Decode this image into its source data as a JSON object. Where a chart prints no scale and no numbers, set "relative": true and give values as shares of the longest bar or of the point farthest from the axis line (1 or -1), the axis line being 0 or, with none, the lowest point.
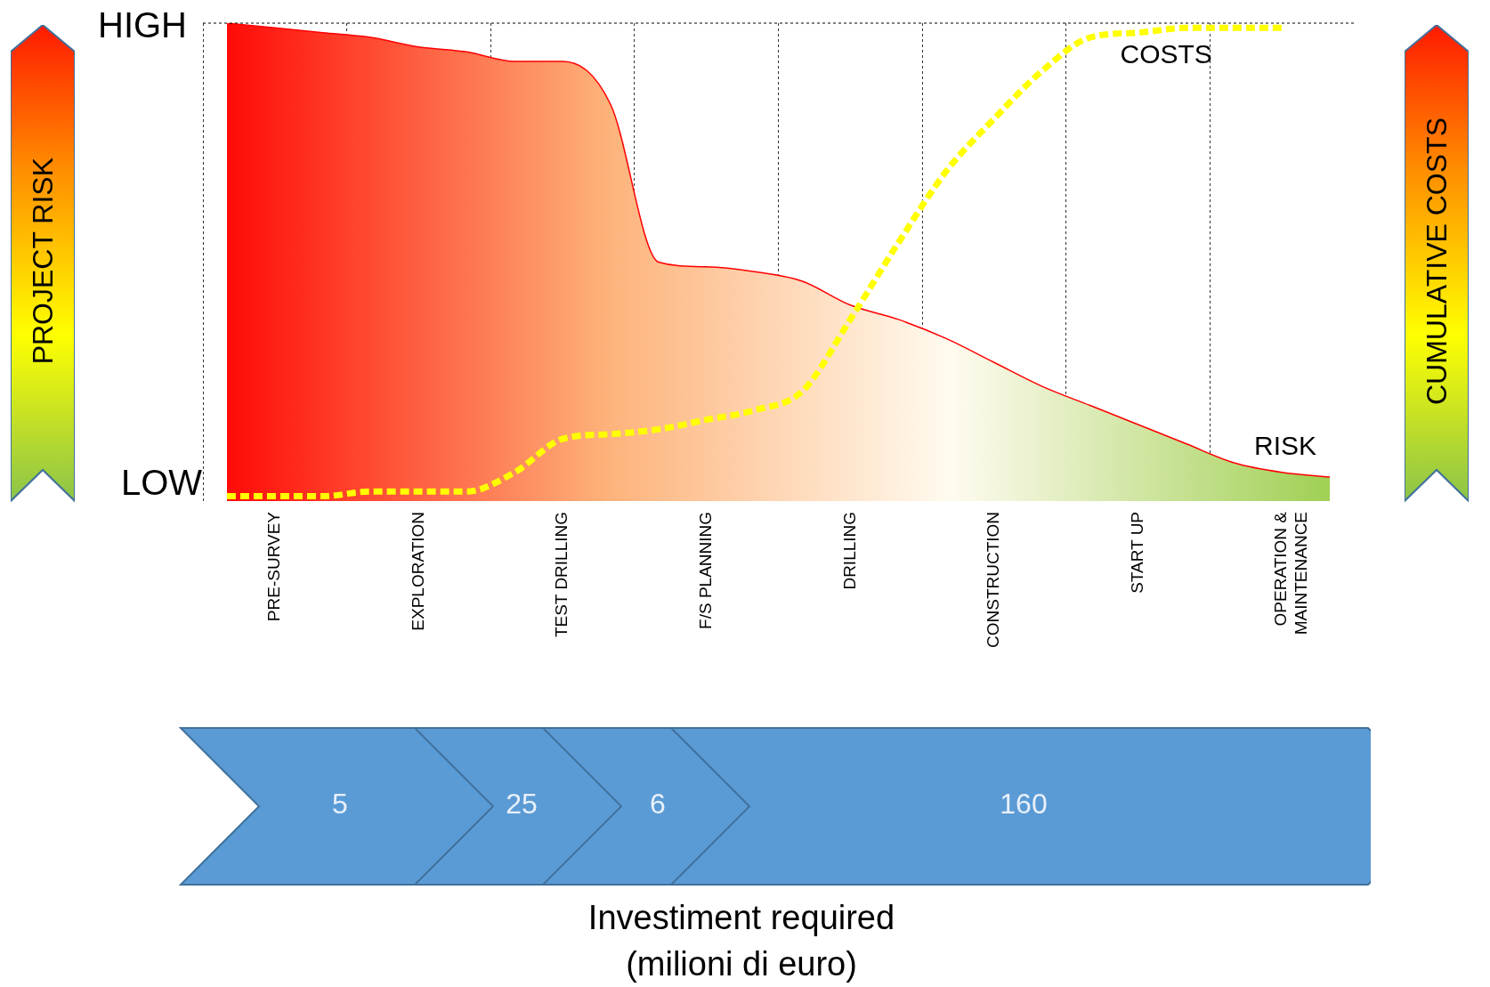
{
  "chart_data": {
    "type": "area",
    "relative": true,
    "grid": "x",
    "marker": "none",
    "categories": [
      null,
      "PRE-SURVEY",
      null,
      null,
      "EXPLORATION",
      null,
      null,
      "TEST DRILLING",
      null,
      null,
      "F/S PLANNING",
      null,
      null,
      "DRILLING",
      null,
      null,
      "CONSTRUCTION",
      null,
      null,
      "START UP",
      null,
      null,
      "OPERATION & MAINTENANCE",
      null
    ],
    "series": [
      {
        "name": "RISK",
        "type": "area",
        "color": "#ff0000",
        "values": [
          1.0,
          0.99,
          0.98,
          0.97,
          0.95,
          0.94,
          0.92,
          0.92,
          0.83,
          0.5,
          0.49,
          0.48,
          0.46,
          0.41,
          0.38,
          0.34,
          0.29,
          0.24,
          0.2,
          0.16,
          0.12,
          0.08,
          0.06,
          0.05
        ]
      },
      {
        "name": "COSTS",
        "type": "line",
        "color": "#ffff00",
        "line_style": "dashed",
        "values": [
          0.01,
          0.01,
          0.01,
          0.02,
          0.02,
          0.02,
          0.06,
          0.13,
          0.14,
          0.15,
          0.17,
          0.19,
          0.23,
          0.38,
          0.54,
          0.69,
          0.8,
          0.9,
          0.97,
          0.98,
          0.99,
          0.99,
          0.99,
          null
        ]
      }
    ],
    "ref_lines": [
      {
        "axis": "y",
        "value": 1,
        "line_style": "dashed",
        "color": "#000000"
      }
    ],
    "annotations": [
      "PROJECT RISK",
      "CUMULATIVE COSTS",
      "HIGH",
      "LOW",
      "5",
      "25",
      "6",
      "160",
      "Investiment required\n(milioni di euro)"
    ]
  }
}
